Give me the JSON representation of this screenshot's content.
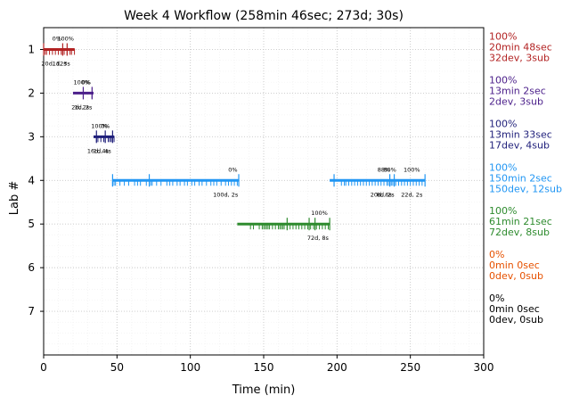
{
  "chart_data": {
    "type": "timeline",
    "title": "Week 4 Workflow (258min 46sec; 273d; 30s)",
    "xlabel": "Time (min)",
    "ylabel": "Lab #",
    "xlim": [
      0,
      300
    ],
    "ylim": [
      0.5,
      8
    ],
    "xticks": [
      0,
      50,
      100,
      150,
      200,
      250,
      300
    ],
    "yticks": [
      1,
      2,
      3,
      4,
      5,
      6,
      7
    ],
    "grid": true,
    "labs": [
      {
        "lab": 1,
        "color": "#b22222",
        "segments": [
          {
            "start": 0,
            "end": 21,
            "ticks": [
              1,
              2,
              4,
              6,
              8,
              10,
              12,
              13,
              14,
              16,
              18,
              19,
              21
            ],
            "tick_major": [
              0,
              13,
              16
            ],
            "top_labels": [
              {
                "x": 9,
                "text": "0%"
              },
              {
                "x": 15,
                "text": "100%"
              }
            ],
            "bottom_labels": [
              {
                "x": 7,
                "text": "20d, 12s"
              },
              {
                "x": 12,
                "text": "1d, 3s"
              }
            ]
          }
        ],
        "right_lines": [
          "100%",
          "20min 48sec",
          "32dev, 3sub"
        ]
      },
      {
        "lab": 2,
        "color": "#4b1f8a",
        "segments": [
          {
            "start": 20,
            "end": 34,
            "ticks": [
              27,
              33
            ],
            "tick_major": [
              27,
              33
            ],
            "top_labels": [
              {
                "x": 26,
                "text": "100%"
              },
              {
                "x": 29,
                "text": "0%"
              }
            ],
            "bottom_labels": [
              {
                "x": 25,
                "text": "2d, 2s"
              },
              {
                "x": 27,
                "text": "1d, 2s"
              }
            ]
          }
        ],
        "right_lines": [
          "100%",
          "13min 2sec",
          "2dev, 3sub"
        ]
      },
      {
        "lab": 3,
        "color": "#1f1f7a",
        "segments": [
          {
            "start": 34,
            "end": 48,
            "ticks": [
              36,
              37,
              39,
              41,
              42,
              44,
              45,
              46,
              47,
              48
            ],
            "tick_major": [
              36,
              42,
              47
            ],
            "top_labels": [
              {
                "x": 38,
                "text": "100%"
              },
              {
                "x": 42,
                "text": "0%"
              }
            ],
            "bottom_labels": [
              {
                "x": 37,
                "text": "16d, 4s"
              },
              {
                "x": 40,
                "text": "1d, 4s"
              }
            ]
          }
        ],
        "right_lines": [
          "100%",
          "13min 33sec",
          "17dev, 4sub"
        ]
      },
      {
        "lab": 4,
        "color": "#2196f3",
        "segments": [
          {
            "start": 47,
            "end": 133,
            "ticks": [
              47,
              48,
              49,
              52,
              55,
              58,
              62,
              64,
              66,
              70,
              73,
              74,
              77,
              80,
              84,
              86,
              88,
              91,
              93,
              96,
              98,
              101,
              103,
              106,
              108,
              111,
              114,
              116,
              118,
              121,
              124,
              126,
              128,
              130,
              132
            ],
            "tick_major": [
              47,
              72,
              133
            ],
            "top_labels": [
              {
                "x": 129,
                "text": "0%"
              }
            ],
            "bottom_labels": [
              {
                "x": 124,
                "text": "100d, 2s"
              }
            ]
          },
          {
            "start": 195,
            "end": 260,
            "ticks": [
              203,
              205,
              206,
              208,
              210,
              212,
              214,
              216,
              218,
              220,
              222,
              224,
              226,
              228,
              230,
              232,
              234,
              235,
              236,
              237,
              238,
              239,
              240,
              242,
              244,
              246,
              248,
              250,
              252,
              254,
              256,
              258
            ],
            "tick_major": [
              198,
              236,
              239,
              260
            ],
            "top_labels": [
              {
                "x": 232,
                "text": "88%"
              },
              {
                "x": 236,
                "text": "80%"
              },
              {
                "x": 251,
                "text": "100%"
              }
            ],
            "bottom_labels": [
              {
                "x": 230,
                "text": "20d, 6s"
              },
              {
                "x": 233,
                "text": "8d, 2s"
              },
              {
                "x": 251,
                "text": "22d, 2s"
              }
            ]
          }
        ],
        "right_lines": [
          "100%",
          "150min 2sec",
          "150dev, 12sub"
        ]
      },
      {
        "lab": 5,
        "color": "#2e8b2e",
        "segments": [
          {
            "start": 132,
            "end": 195,
            "ticks": [
              141,
              143,
              147,
              149,
              150,
              151,
              152,
              153,
              154,
              156,
              158,
              160,
              161,
              162,
              163,
              164,
              166,
              168,
              170,
              172,
              174,
              176,
              178,
              180,
              182,
              184,
              186,
              188,
              190,
              192,
              194
            ],
            "tick_major": [
              166,
              181,
              185,
              195
            ],
            "top_labels": [
              {
                "x": 188,
                "text": "100%"
              }
            ],
            "bottom_labels": [
              {
                "x": 187,
                "text": "72d, 8s"
              }
            ]
          }
        ],
        "right_lines": [
          "100%",
          "61min 21sec",
          "72dev, 8sub"
        ]
      },
      {
        "lab": 6,
        "color": "#e65100",
        "segments": [],
        "right_lines": [
          "0%",
          "0min 0sec",
          "0dev, 0sub"
        ]
      },
      {
        "lab": 7,
        "color": "#000000",
        "segments": [],
        "right_lines": [
          "0%",
          "0min 0sec",
          "0dev, 0sub"
        ]
      }
    ]
  }
}
